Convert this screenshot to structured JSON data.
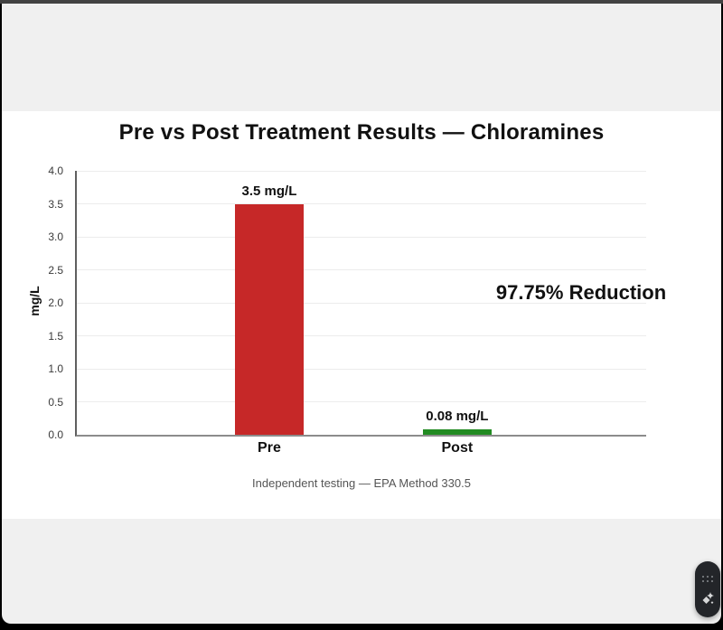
{
  "window": {
    "top_strip_color": "#424242",
    "background_color": "#000000",
    "page_color": "#f0f0f0",
    "canvas_color": "#ffffff"
  },
  "chart_data": {
    "type": "bar",
    "title": "Pre vs Post Treatment Results — Chloramines",
    "ylabel": "mg/L",
    "xlabel": "",
    "categories": [
      "Pre",
      "Post"
    ],
    "values": [
      3.5,
      0.08
    ],
    "bar_labels": [
      "3.5 mg/L",
      "0.08 mg/L"
    ],
    "bar_colors": [
      "#c62828",
      "#228b22"
    ],
    "ylim": [
      0,
      4
    ],
    "yticks": [
      0.0,
      0.5,
      1.0,
      1.5,
      2.0,
      2.5,
      3.0,
      3.5,
      4.0
    ],
    "ytick_labels": [
      "0.0",
      "0.5",
      "1.0",
      "1.5",
      "2.0",
      "2.5",
      "3.0",
      "3.5",
      "4.0"
    ],
    "grid": true,
    "legend_position": "none",
    "annotation": "97.75% Reduction",
    "caption": "Independent testing — EPA Method 330.5"
  },
  "floating_widget": {
    "color": "#232529",
    "icons": [
      "drag-dots-icon",
      "sparkles-icon"
    ]
  }
}
